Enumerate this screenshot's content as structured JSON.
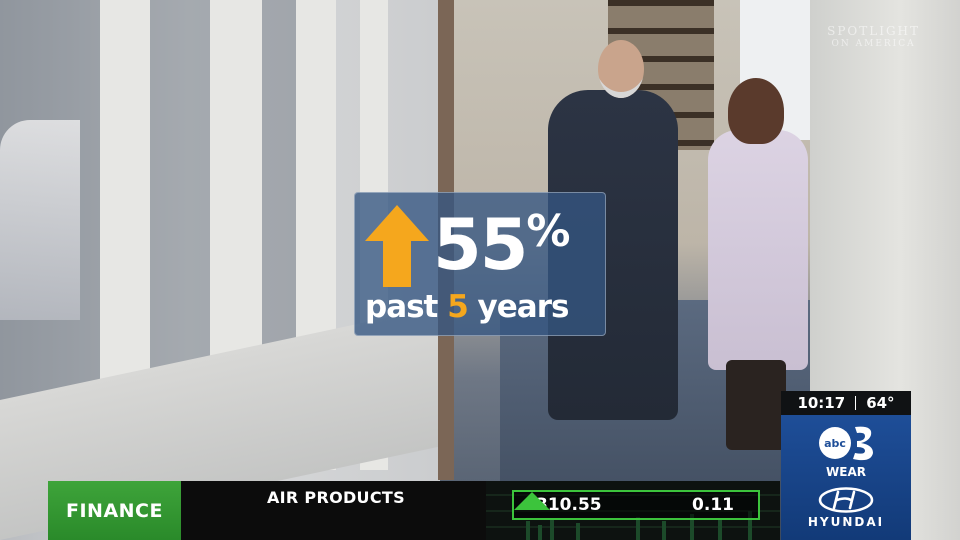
{
  "watermark": {
    "line1": "SPOTLIGHT",
    "line2": "ON AMERICA"
  },
  "stat": {
    "value": "55",
    "unit": "%",
    "caption_prefix": "past ",
    "caption_accent": "5",
    "caption_suffix": " years",
    "arrow": "up-arrow-icon",
    "arrow_color": "#f5a71d",
    "accent_color": "#f5a71d"
  },
  "ticker": {
    "section": "FINANCE",
    "section_color": "#2f9a2f",
    "company": "AIR PRODUCTS",
    "price": "310.55",
    "direction_icon": "triangle-up-icon",
    "change": "0.11",
    "up_color": "#3cc43c"
  },
  "bug": {
    "time": "10:17",
    "temperature": "64°",
    "station_logo": "abc-3-logo",
    "station_name": "WEAR",
    "sponsor_logo": "hyundai-logo",
    "sponsor_name": "HYUNDAI",
    "panel_color": "#1e4e98"
  }
}
